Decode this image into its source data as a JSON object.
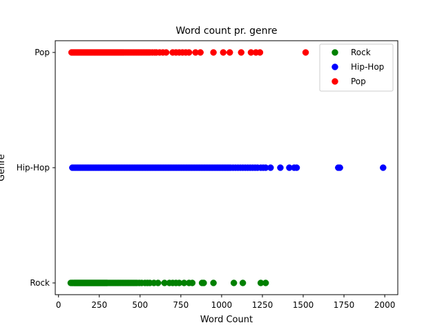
{
  "chart_data": {
    "type": "scatter",
    "title": "Word count pr. genre",
    "xlabel": "Word Count",
    "ylabel": "Genre",
    "xlim": [
      -20,
      2080
    ],
    "xticks": [
      0,
      250,
      500,
      750,
      1000,
      1250,
      1500,
      1750,
      2000
    ],
    "y_categories": [
      "Rock",
      "Hip-Hop",
      "Pop"
    ],
    "grid": false,
    "legend_position": "top-right",
    "series": [
      {
        "name": "Rock",
        "category": "Rock",
        "color": "#008000",
        "x": [
          75,
          82,
          88,
          95,
          100,
          105,
          110,
          115,
          120,
          125,
          130,
          135,
          140,
          145,
          150,
          155,
          160,
          165,
          170,
          175,
          180,
          185,
          190,
          195,
          200,
          205,
          210,
          215,
          220,
          225,
          230,
          235,
          240,
          245,
          250,
          255,
          260,
          265,
          270,
          275,
          280,
          285,
          290,
          295,
          300,
          310,
          320,
          330,
          340,
          350,
          360,
          370,
          380,
          390,
          400,
          410,
          420,
          430,
          440,
          450,
          460,
          470,
          480,
          495,
          510,
          530,
          545,
          560,
          585,
          610,
          650,
          680,
          700,
          720,
          740,
          770,
          800,
          820,
          880,
          890,
          950,
          1075,
          1130,
          1240,
          1270
        ]
      },
      {
        "name": "Hip-Hop",
        "category": "Hip-Hop",
        "color": "#0000ff",
        "x": [
          85,
          95,
          105,
          115,
          125,
          135,
          145,
          155,
          165,
          175,
          185,
          195,
          205,
          215,
          225,
          235,
          245,
          255,
          265,
          275,
          285,
          295,
          305,
          315,
          325,
          335,
          345,
          355,
          365,
          375,
          385,
          395,
          405,
          415,
          425,
          435,
          445,
          455,
          465,
          475,
          485,
          495,
          505,
          515,
          525,
          535,
          545,
          555,
          565,
          575,
          585,
          595,
          605,
          615,
          625,
          635,
          645,
          655,
          665,
          675,
          685,
          695,
          705,
          715,
          725,
          735,
          745,
          755,
          765,
          775,
          785,
          795,
          805,
          815,
          825,
          835,
          845,
          855,
          865,
          875,
          885,
          895,
          905,
          915,
          925,
          935,
          945,
          955,
          965,
          975,
          985,
          995,
          1005,
          1015,
          1025,
          1035,
          1045,
          1055,
          1070,
          1085,
          1100,
          1115,
          1130,
          1145,
          1160,
          1175,
          1190,
          1205,
          1220,
          1240,
          1255,
          1270,
          1300,
          1360,
          1415,
          1445,
          1460,
          1715,
          1725,
          1990
        ]
      },
      {
        "name": "Pop",
        "category": "Pop",
        "color": "#ff0000",
        "x": [
          80,
          88,
          96,
          104,
          112,
          120,
          128,
          136,
          144,
          152,
          160,
          168,
          176,
          184,
          192,
          200,
          208,
          216,
          224,
          232,
          240,
          248,
          256,
          264,
          272,
          280,
          288,
          296,
          304,
          312,
          320,
          328,
          336,
          344,
          352,
          360,
          368,
          376,
          384,
          392,
          400,
          410,
          420,
          430,
          440,
          450,
          460,
          470,
          480,
          490,
          500,
          510,
          520,
          530,
          540,
          550,
          560,
          575,
          590,
          600,
          620,
          640,
          660,
          700,
          720,
          740,
          760,
          780,
          800,
          840,
          870,
          950,
          1010,
          1050,
          1120,
          1180,
          1210,
          1235,
          1515
        ]
      }
    ]
  }
}
